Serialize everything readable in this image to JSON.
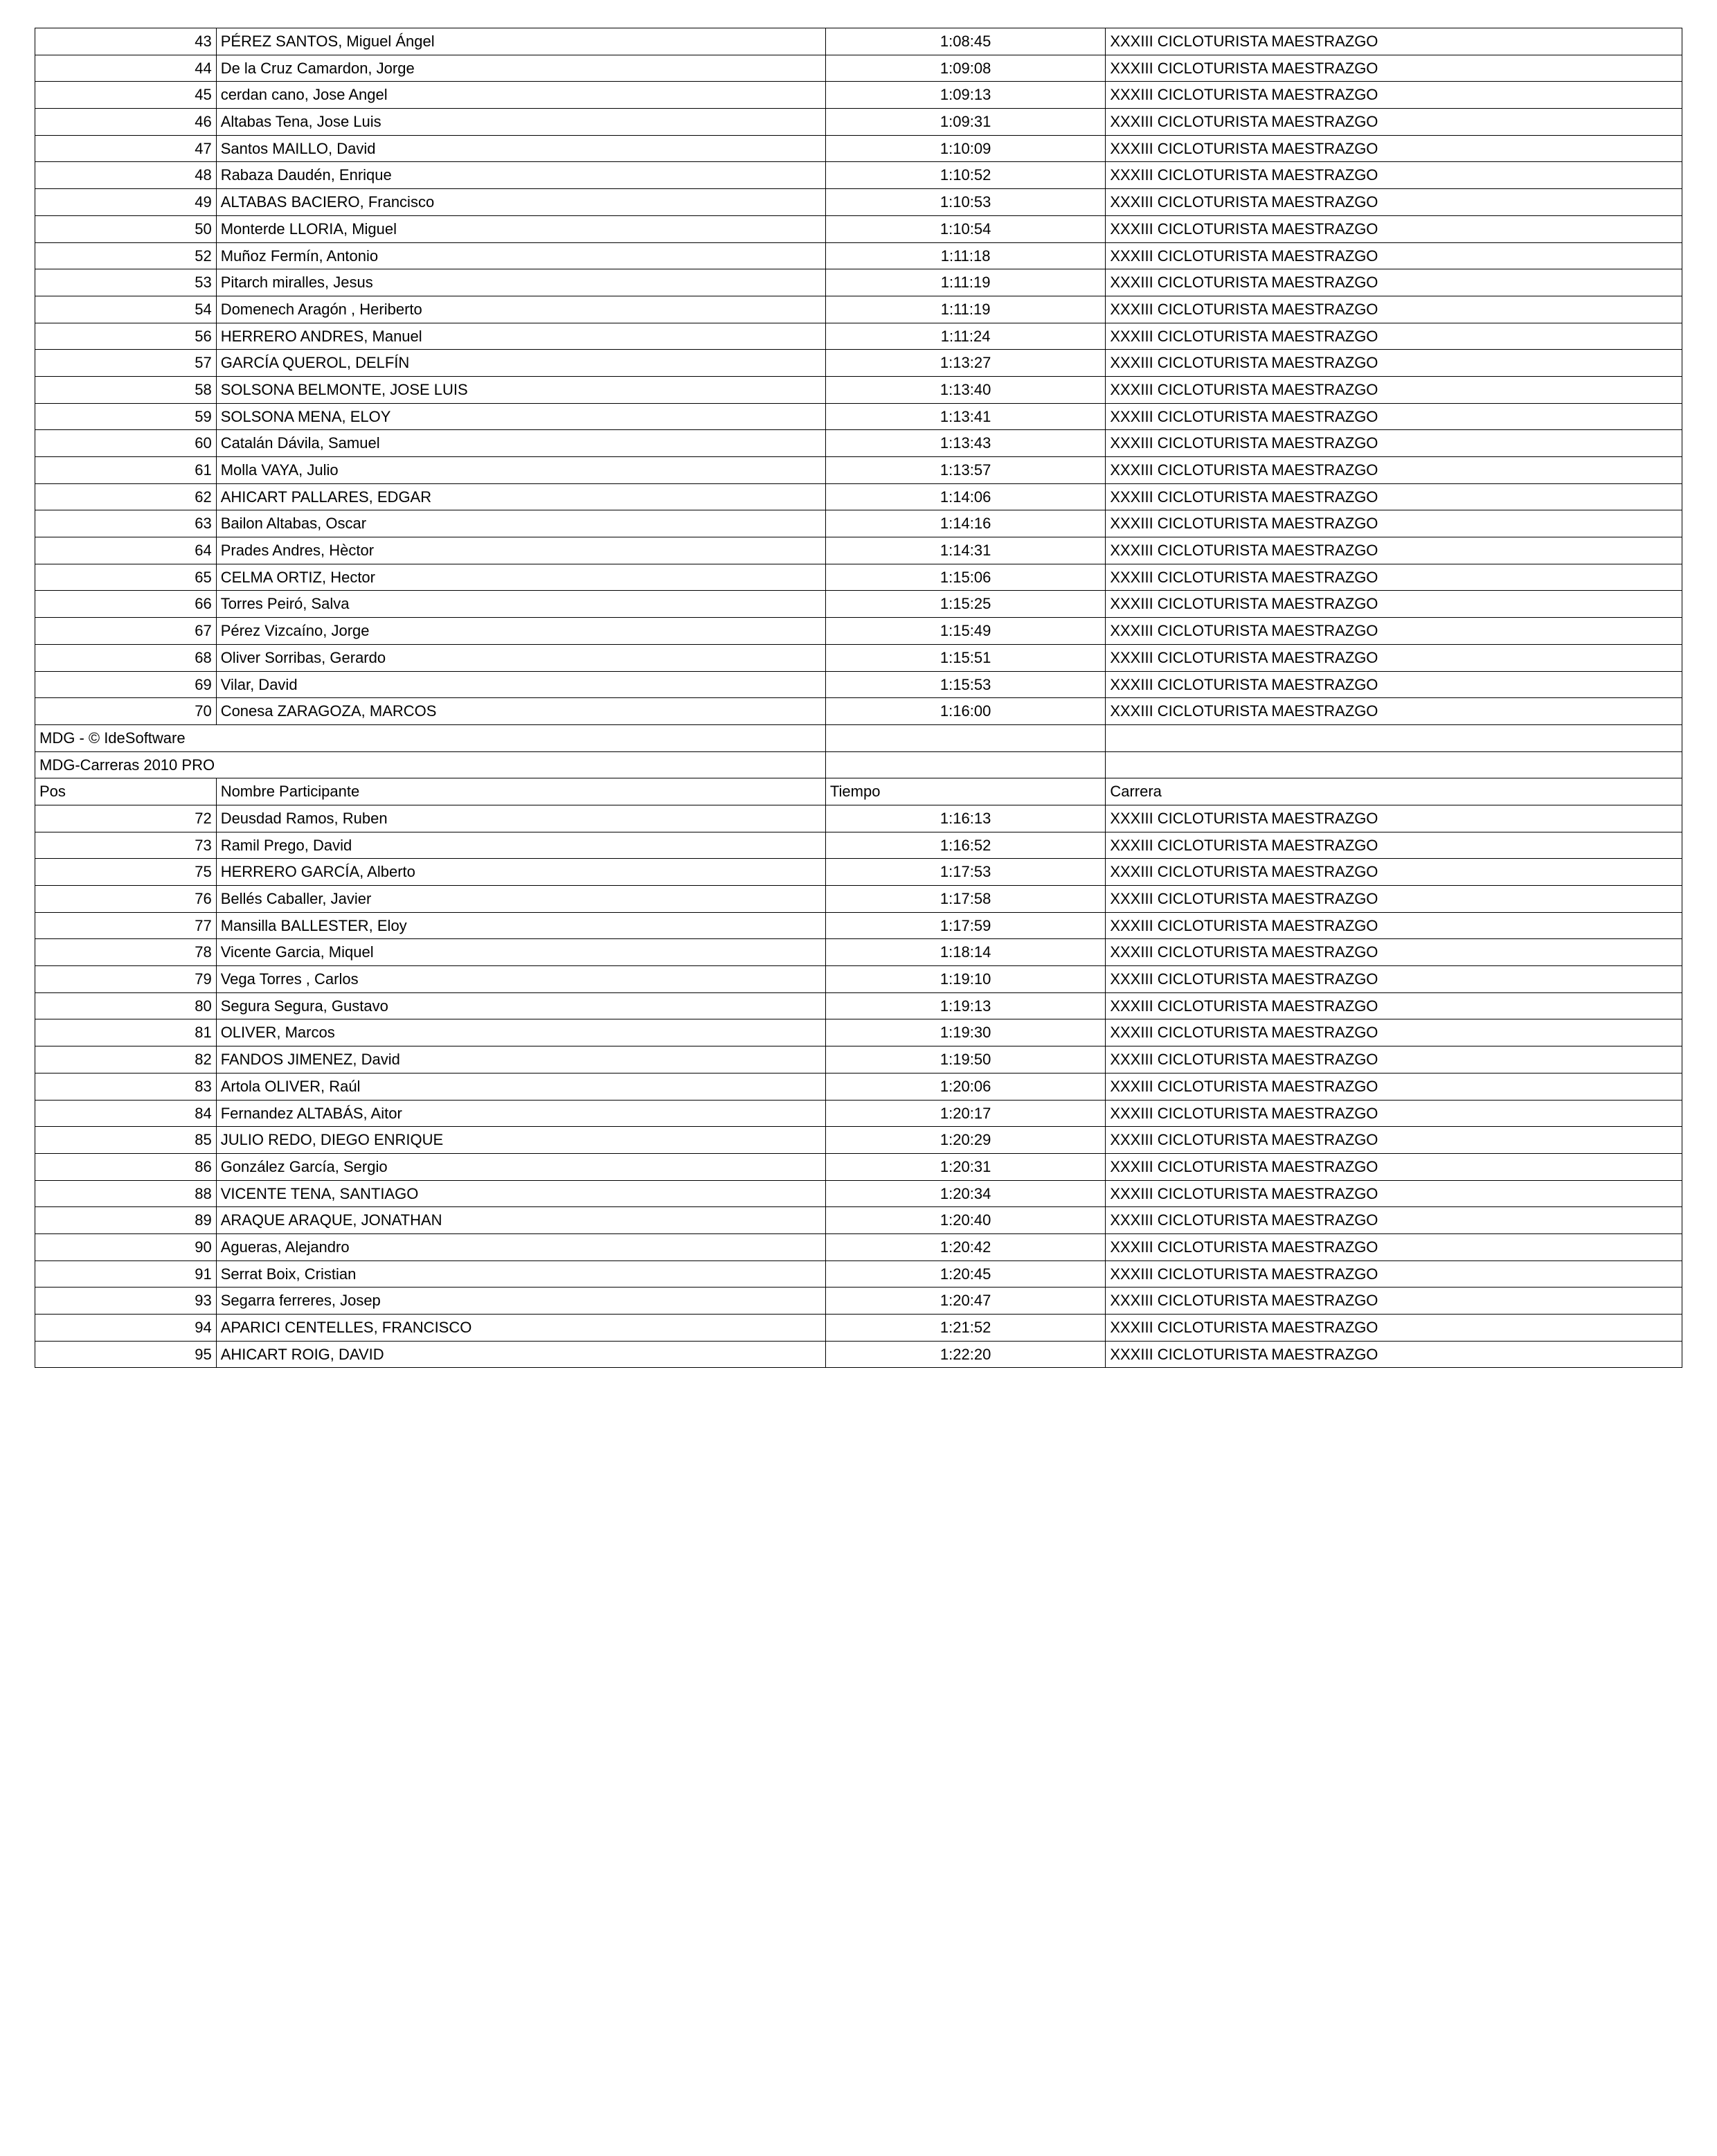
{
  "headers": {
    "pos": "Pos",
    "name": "Nombre Participante",
    "time": "Tiempo",
    "race": "Carrera"
  },
  "meta": {
    "copyright": "MDG - © IdeSoftware",
    "product": "MDG-Carreras 2010 PRO"
  },
  "race_name": "XXXIII CICLOTURISTA MAESTRAZGO",
  "rows_top": [
    {
      "pos": "43",
      "name": "PÉREZ SANTOS, Miguel Ángel",
      "time": "1:08:45"
    },
    {
      "pos": "44",
      "name": "De la Cruz Camardon, Jorge",
      "time": "1:09:08"
    },
    {
      "pos": "45",
      "name": "cerdan cano, Jose Angel",
      "time": "1:09:13"
    },
    {
      "pos": "46",
      "name": "Altabas Tena, Jose Luis",
      "time": "1:09:31"
    },
    {
      "pos": "47",
      "name": "Santos MAILLO, David",
      "time": "1:10:09"
    },
    {
      "pos": "48",
      "name": "Rabaza Daudén, Enrique",
      "time": "1:10:52"
    },
    {
      "pos": "49",
      "name": "ALTABAS BACIERO, Francisco",
      "time": "1:10:53"
    },
    {
      "pos": "50",
      "name": "Monterde LLORIA, Miguel",
      "time": "1:10:54"
    },
    {
      "pos": "52",
      "name": "Muñoz Fermín, Antonio",
      "time": "1:11:18"
    },
    {
      "pos": "53",
      "name": "Pitarch miralles, Jesus",
      "time": "1:11:19"
    },
    {
      "pos": "54",
      "name": "Domenech Aragón , Heriberto",
      "time": "1:11:19"
    },
    {
      "pos": "56",
      "name": "HERRERO ANDRES, Manuel",
      "time": "1:11:24"
    },
    {
      "pos": "57",
      "name": "GARCÍA QUEROL, DELFÍN",
      "time": "1:13:27"
    },
    {
      "pos": "58",
      "name": "SOLSONA BELMONTE, JOSE LUIS",
      "time": "1:13:40"
    },
    {
      "pos": "59",
      "name": "SOLSONA MENA, ELOY",
      "time": "1:13:41"
    },
    {
      "pos": "60",
      "name": "Catalán Dávila, Samuel",
      "time": "1:13:43"
    },
    {
      "pos": "61",
      "name": "Molla VAYA, Julio",
      "time": "1:13:57"
    },
    {
      "pos": "62",
      "name": "AHICART PALLARES, EDGAR",
      "time": "1:14:06"
    },
    {
      "pos": "63",
      "name": "Bailon Altabas, Oscar",
      "time": "1:14:16"
    },
    {
      "pos": "64",
      "name": "Prades Andres, Hèctor",
      "time": "1:14:31"
    },
    {
      "pos": "65",
      "name": "CELMA ORTIZ, Hector",
      "time": "1:15:06"
    },
    {
      "pos": "66",
      "name": "Torres Peiró, Salva",
      "time": "1:15:25"
    },
    {
      "pos": "67",
      "name": "Pérez Vizcaíno, Jorge",
      "time": "1:15:49"
    },
    {
      "pos": "68",
      "name": "Oliver Sorribas, Gerardo",
      "time": "1:15:51"
    },
    {
      "pos": "69",
      "name": "Vilar, David",
      "time": "1:15:53"
    },
    {
      "pos": "70",
      "name": "Conesa ZARAGOZA, MARCOS",
      "time": "1:16:00"
    }
  ],
  "rows_bottom": [
    {
      "pos": "72",
      "name": "Deusdad Ramos, Ruben",
      "time": "1:16:13"
    },
    {
      "pos": "73",
      "name": "Ramil Prego, David",
      "time": "1:16:52"
    },
    {
      "pos": "75",
      "name": "HERRERO GARCÍA, Alberto",
      "time": "1:17:53"
    },
    {
      "pos": "76",
      "name": "Bellés Caballer, Javier",
      "time": "1:17:58"
    },
    {
      "pos": "77",
      "name": "Mansilla BALLESTER, Eloy",
      "time": "1:17:59"
    },
    {
      "pos": "78",
      "name": "Vicente Garcia, Miquel",
      "time": "1:18:14"
    },
    {
      "pos": "79",
      "name": "Vega Torres , Carlos",
      "time": "1:19:10"
    },
    {
      "pos": "80",
      "name": "Segura Segura, Gustavo",
      "time": "1:19:13"
    },
    {
      "pos": "81",
      "name": "OLIVER, Marcos",
      "time": "1:19:30"
    },
    {
      "pos": "82",
      "name": "FANDOS JIMENEZ, David",
      "time": "1:19:50"
    },
    {
      "pos": "83",
      "name": "Artola OLIVER, Raúl",
      "time": "1:20:06"
    },
    {
      "pos": "84",
      "name": "Fernandez ALTABÁS, Aitor",
      "time": "1:20:17"
    },
    {
      "pos": "85",
      "name": "JULIO REDO, DIEGO ENRIQUE",
      "time": "1:20:29"
    },
    {
      "pos": "86",
      "name": "González García, Sergio",
      "time": "1:20:31"
    },
    {
      "pos": "88",
      "name": "VICENTE TENA, SANTIAGO",
      "time": "1:20:34"
    },
    {
      "pos": "89",
      "name": "ARAQUE ARAQUE, JONATHAN",
      "time": "1:20:40"
    },
    {
      "pos": "90",
      "name": "Agueras, Alejandro",
      "time": "1:20:42"
    },
    {
      "pos": "91",
      "name": "Serrat Boix, Cristian",
      "time": "1:20:45"
    },
    {
      "pos": "93",
      "name": "Segarra ferreres, Josep",
      "time": "1:20:47"
    },
    {
      "pos": "94",
      "name": "APARICI CENTELLES, FRANCISCO",
      "time": "1:21:52"
    },
    {
      "pos": "95",
      "name": "AHICART ROIG, DAVID",
      "time": "1:22:20"
    }
  ]
}
